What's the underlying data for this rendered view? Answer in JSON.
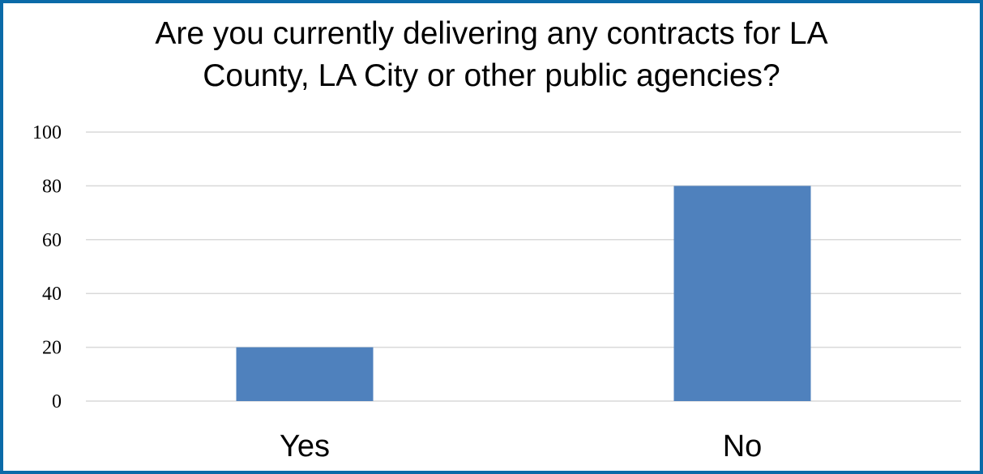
{
  "chart_data": {
    "type": "bar",
    "title": "Are you currently delivering any contracts for LA County, LA City or other public agencies?",
    "title_lines": [
      "Are you currently delivering any contracts for LA",
      "County, LA City or other public agencies?"
    ],
    "categories": [
      "Yes",
      "No"
    ],
    "values": [
      20,
      80
    ],
    "xlabel": "",
    "ylabel": "",
    "ylim": [
      0,
      100
    ],
    "yticks": [
      0,
      20,
      40,
      60,
      80,
      100
    ],
    "grid": true,
    "legend": "none",
    "colors": {
      "bar": "#4f81bd",
      "grid": "#d9d9d9",
      "frame": "#0b6aa8"
    }
  }
}
